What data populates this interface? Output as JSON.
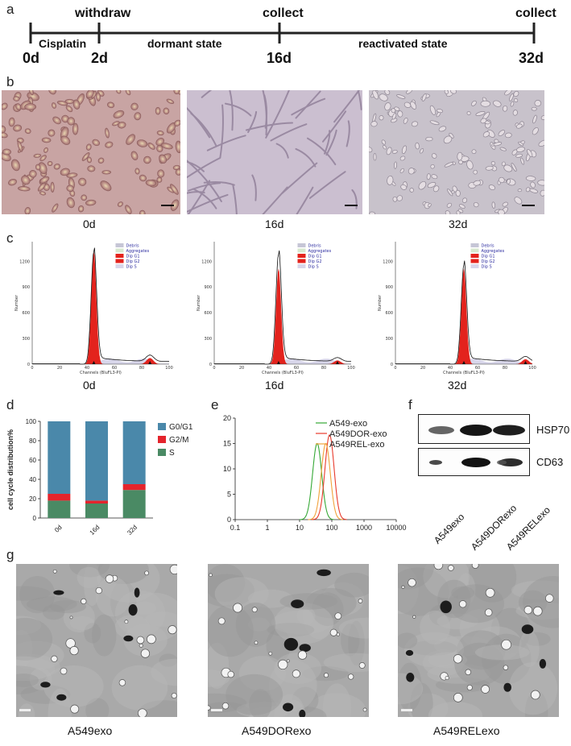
{
  "panels": {
    "a": "a",
    "b": "b",
    "c": "c",
    "d": "d",
    "e": "e",
    "f": "f",
    "g": "g"
  },
  "timeline": {
    "top_labels": [
      "withdraw",
      "collect",
      "collect"
    ],
    "segment_labels": [
      "Cisplatin",
      "dormant state",
      "reactivated state"
    ],
    "day_labels": [
      "0d",
      "2d",
      "16d",
      "32d"
    ]
  },
  "micrographs_b": {
    "captions": [
      "0d",
      "16d",
      "32d"
    ],
    "colors": [
      "#c9a6a4",
      "#c9bccd",
      "#c7c1c9"
    ]
  },
  "flow_c": {
    "captions": [
      "0d",
      "16d",
      "32d"
    ],
    "ylabel": "Number",
    "xlabel": "Channels (BluFL3-PI)",
    "legend": [
      "Debris",
      "Aggregates",
      "Dip G1",
      "Dip G2",
      "Dip S"
    ],
    "yticks": [
      "0",
      "300",
      "600",
      "900",
      "1200"
    ],
    "xticks": [
      "0",
      "20",
      "40",
      "60",
      "80",
      "100"
    ]
  },
  "chart_data": [
    {
      "type": "bar",
      "ylabel": "cell cycle distribution%",
      "categories": [
        "0d",
        "16d",
        "32d"
      ],
      "ylim": [
        0,
        100
      ],
      "yticks": [
        "0",
        "20",
        "40",
        "60",
        "80",
        "100"
      ],
      "series": [
        {
          "name": "S",
          "values": [
            18,
            15,
            29
          ],
          "color": "#4a8a64"
        },
        {
          "name": "G2/M",
          "values": [
            7,
            3,
            6
          ],
          "color": "#e4242c"
        },
        {
          "name": "G0/G1",
          "values": [
            75,
            82,
            65
          ],
          "color": "#4a88aa"
        }
      ],
      "legend_order": [
        "G0/G1",
        "G2/M",
        "S"
      ]
    },
    {
      "type": "line",
      "xscale": "log",
      "xlim": [
        0.1,
        10000
      ],
      "ylim": [
        0,
        20
      ],
      "xticks": [
        "0.1",
        "1",
        "10",
        "100",
        "1000",
        "10000"
      ],
      "yticks": [
        "0",
        "5",
        "10",
        "15",
        "20"
      ],
      "series": [
        {
          "name": "A549-exo",
          "color": "#35a835",
          "peak_x": 35,
          "peak_y": 15
        },
        {
          "name": "A549DOR-exo",
          "color": "#e83a2c",
          "peak_x": 85,
          "peak_y": 16.7
        },
        {
          "name": "A549REL-exo",
          "color": "#f0a23a",
          "peak_x": 65,
          "peak_y": 15
        }
      ]
    }
  ],
  "western_f": {
    "proteins": [
      "HSP70",
      "CD63"
    ],
    "lanes": [
      "A549exo",
      "A549DORexo",
      "A549RELexo"
    ]
  },
  "tem_g": {
    "captions": [
      "A549exo",
      "A549DORexo",
      "A549RELexo"
    ]
  }
}
